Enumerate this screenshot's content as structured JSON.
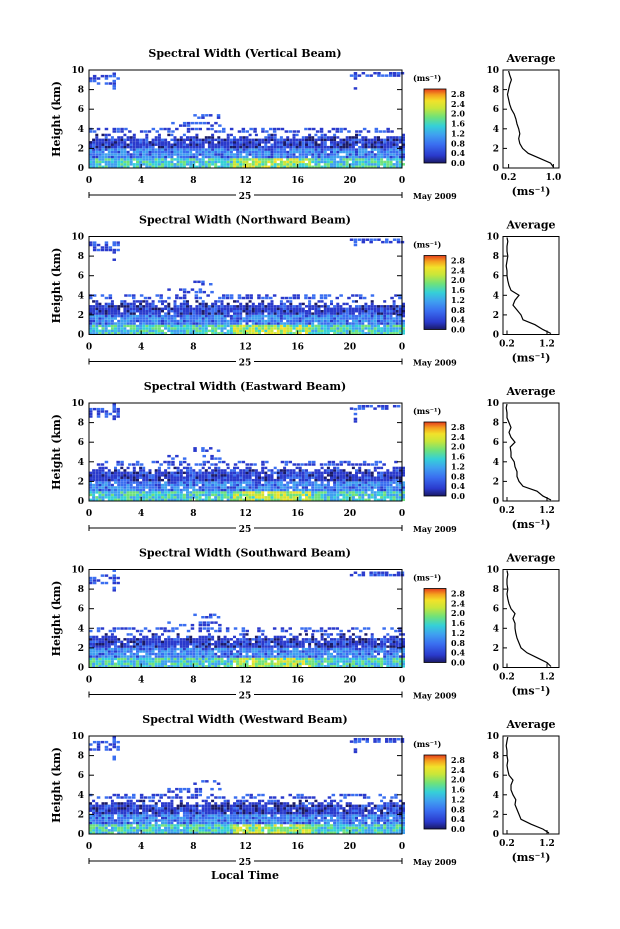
{
  "figure": {
    "xlabel": "Local Time",
    "ylabel": "Height (km)",
    "date_label": "May 2009",
    "day_label": "25",
    "unit_label": "(ms⁻¹)",
    "avg_title": "Average",
    "x_ticks": [
      "0",
      "4",
      "8",
      "12",
      "16",
      "20",
      "0"
    ],
    "y_ticks": [
      "0",
      "2",
      "4",
      "6",
      "8",
      "10"
    ],
    "colorbar_ticks": [
      "0.0",
      "0.4",
      "0.8",
      "1.2",
      "1.6",
      "2.0",
      "2.4",
      "2.8"
    ]
  },
  "colors": {
    "scale": [
      "#1a1a66",
      "#2a3acc",
      "#3a6ef0",
      "#3fa0f0",
      "#35d0d8",
      "#6fe27a",
      "#c8e63a",
      "#f2e22a",
      "#f5a21e",
      "#e53c1c"
    ]
  },
  "chart_data": [
    {
      "type": "heatmap",
      "title": "Spectral Width (Vertical Beam)",
      "xlabel": "Local Time",
      "ylabel": "Height (km)",
      "xlim": [
        0,
        24
      ],
      "ylim": [
        0,
        10
      ],
      "clim": [
        0.0,
        3.0
      ],
      "profile": {
        "title": "Average",
        "xlabel": "(ms⁻¹)",
        "xlim": [
          0.1,
          1.1
        ],
        "x_ticks": [
          "0.2",
          "1.0"
        ],
        "height": [
          0.1,
          0.5,
          1.0,
          1.5,
          2.0,
          2.5,
          3.0,
          3.5,
          4.0,
          4.5,
          5.0,
          5.5,
          6.0,
          6.5,
          7.0,
          7.5,
          8.0,
          8.5,
          9.0,
          9.5,
          9.9
        ],
        "width": [
          1.0,
          0.95,
          0.75,
          0.55,
          0.45,
          0.4,
          0.38,
          0.4,
          0.38,
          0.35,
          0.33,
          0.3,
          0.25,
          0.22,
          0.2,
          0.18,
          0.2,
          0.22,
          0.25,
          0.22,
          0.2
        ]
      }
    },
    {
      "type": "heatmap",
      "title": "Spectral Width (Northward Beam)",
      "xlabel": "Local Time",
      "ylabel": "Height (km)",
      "xlim": [
        0,
        24
      ],
      "ylim": [
        0,
        10
      ],
      "clim": [
        0.0,
        3.0
      ],
      "profile": {
        "title": "Average",
        "xlabel": "(ms⁻¹)",
        "xlim": [
          0.1,
          1.5
        ],
        "x_ticks": [
          "0.2",
          "1.2"
        ],
        "height": [
          0.1,
          0.5,
          1.0,
          1.5,
          2.0,
          2.5,
          3.0,
          3.5,
          4.0,
          4.5,
          5.0,
          5.5,
          6.0,
          6.5,
          7.0,
          7.5,
          8.0,
          8.5,
          9.0,
          9.5,
          9.9
        ],
        "width": [
          1.3,
          1.1,
          0.9,
          0.6,
          0.55,
          0.45,
          0.35,
          0.4,
          0.5,
          0.3,
          0.25,
          0.22,
          0.2,
          0.2,
          0.18,
          0.2,
          0.22,
          0.2,
          0.2,
          0.22,
          0.2
        ]
      }
    },
    {
      "type": "heatmap",
      "title": "Spectral Width (Eastward Beam)",
      "xlabel": "Local Time",
      "ylabel": "Height (km)",
      "xlim": [
        0,
        24
      ],
      "ylim": [
        0,
        10
      ],
      "clim": [
        0.0,
        3.0
      ],
      "profile": {
        "title": "Average",
        "xlabel": "(ms⁻¹)",
        "xlim": [
          0.1,
          1.5
        ],
        "x_ticks": [
          "0.2",
          "1.2"
        ],
        "height": [
          0.1,
          0.5,
          1.0,
          1.5,
          2.0,
          2.5,
          3.0,
          3.5,
          4.0,
          4.5,
          5.0,
          5.5,
          6.0,
          6.5,
          7.0,
          7.5,
          8.0,
          8.5,
          9.0,
          9.5,
          9.9
        ],
        "width": [
          1.3,
          1.1,
          0.95,
          0.6,
          0.5,
          0.45,
          0.45,
          0.4,
          0.38,
          0.3,
          0.3,
          0.28,
          0.4,
          0.3,
          0.25,
          0.3,
          0.25,
          0.2,
          0.2,
          0.18,
          0.2
        ]
      }
    },
    {
      "type": "heatmap",
      "title": "Spectral Width (Southward Beam)",
      "xlabel": "Local Time",
      "ylabel": "Height (km)",
      "xlim": [
        0,
        24
      ],
      "ylim": [
        0,
        10
      ],
      "clim": [
        0.0,
        3.0
      ],
      "profile": {
        "title": "Average",
        "xlabel": "(ms⁻¹)",
        "xlim": [
          0.1,
          1.5
        ],
        "x_ticks": [
          "0.2",
          "1.2"
        ],
        "height": [
          0.1,
          0.5,
          1.0,
          1.5,
          2.0,
          2.5,
          3.0,
          3.5,
          4.0,
          4.5,
          5.0,
          5.5,
          6.0,
          6.5,
          7.0,
          7.5,
          8.0,
          8.5,
          9.0,
          9.5,
          9.9
        ],
        "width": [
          1.3,
          1.2,
          0.95,
          0.7,
          0.55,
          0.5,
          0.45,
          0.42,
          0.4,
          0.4,
          0.35,
          0.4,
          0.3,
          0.25,
          0.22,
          0.2,
          0.22,
          0.2,
          0.2,
          0.22,
          0.2
        ]
      }
    },
    {
      "type": "heatmap",
      "title": "Spectral Width (Westward Beam)",
      "xlabel": "Local Time",
      "ylabel": "Height (km)",
      "xlim": [
        0,
        24
      ],
      "ylim": [
        0,
        10
      ],
      "clim": [
        0.0,
        3.0
      ],
      "profile": {
        "title": "Average",
        "xlabel": "(ms⁻¹)",
        "xlim": [
          0.1,
          1.5
        ],
        "x_ticks": [
          "0.2",
          "1.2"
        ],
        "height": [
          0.1,
          0.5,
          1.0,
          1.5,
          2.0,
          2.5,
          3.0,
          3.5,
          4.0,
          4.5,
          5.0,
          5.5,
          6.0,
          6.5,
          7.0,
          7.5,
          8.0,
          8.5,
          9.0,
          9.5,
          9.9
        ],
        "width": [
          1.25,
          1.1,
          0.8,
          0.55,
          0.5,
          0.45,
          0.4,
          0.42,
          0.35,
          0.3,
          0.3,
          0.35,
          0.25,
          0.22,
          0.2,
          0.22,
          0.2,
          0.2,
          0.18,
          0.2,
          0.22
        ]
      }
    }
  ]
}
